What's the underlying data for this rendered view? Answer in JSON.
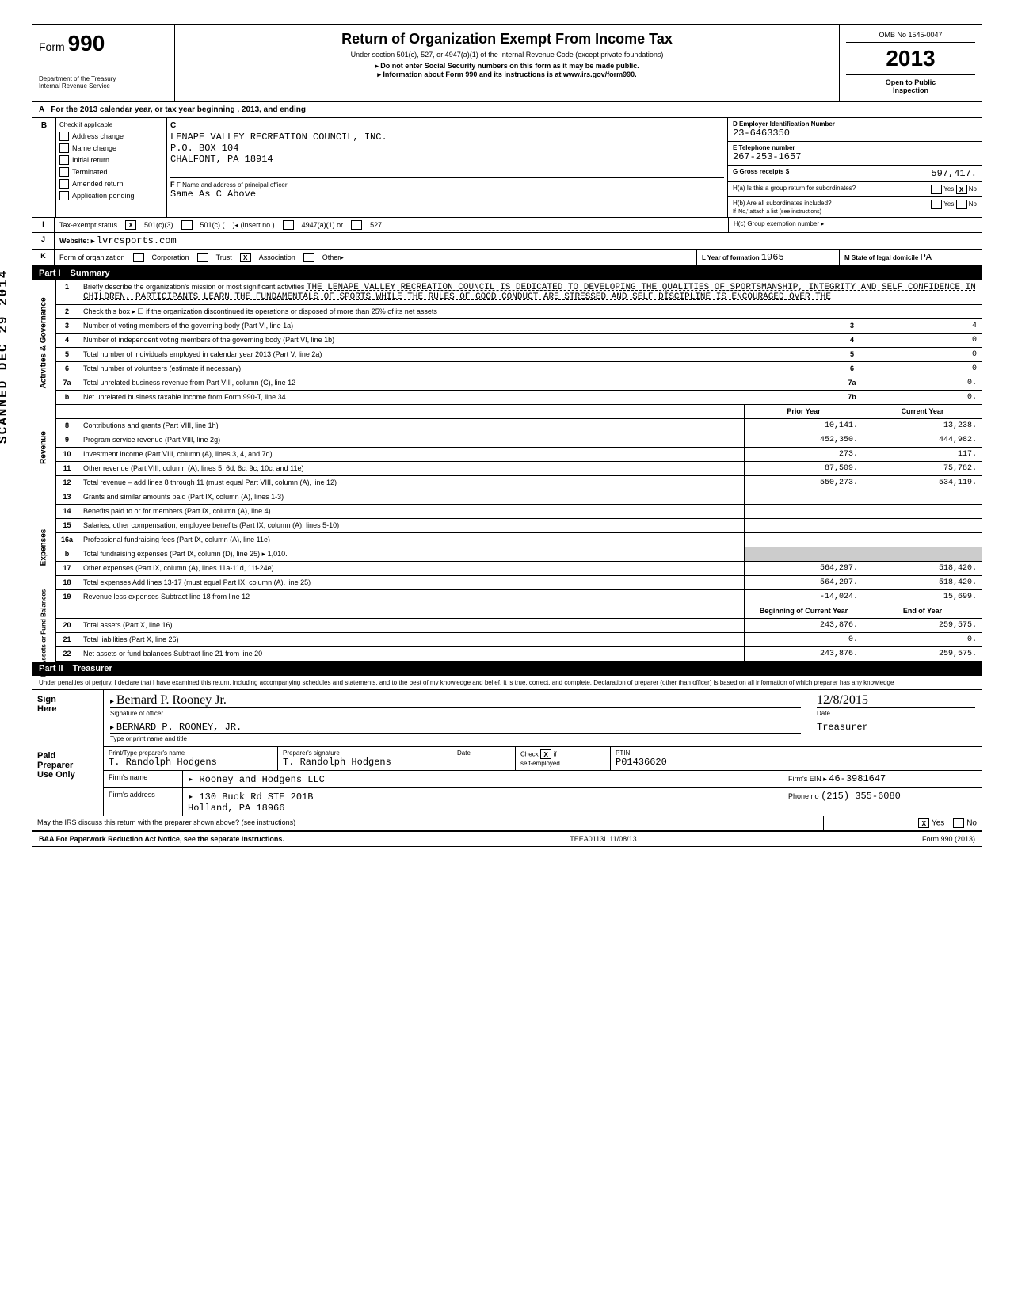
{
  "header": {
    "form_label": "Form",
    "form_number": "990",
    "title": "Return of Organization Exempt From Income Tax",
    "subtitle": "Under section 501(c), 527, or 4947(a)(1) of the Internal Revenue Code (except private foundations)",
    "note1": "▸ Do not enter Social Security numbers on this form as it may be made public.",
    "note2": "▸ Information about Form 990 and its instructions is at www.irs.gov/form990.",
    "dept": "Department of the Treasury\nInternal Revenue Service",
    "omb": "OMB No 1545-0047",
    "year": "2013",
    "open_public": "Open to Public\nInspection"
  },
  "line_a": "For the 2013 calendar year, or tax year beginning                               , 2013, and ending",
  "section_b": {
    "b_label": "B",
    "check_label": "Check if applicable",
    "c_label": "C",
    "checks": [
      "Address change",
      "Name change",
      "Initial return",
      "Terminated",
      "Amended return",
      "Application pending"
    ],
    "org_name": "LENAPE VALLEY RECREATION COUNCIL, INC.",
    "org_addr1": "P.O. BOX 104",
    "org_addr2": "CHALFONT, PA 18914",
    "d_label": "D Employer Identification Number",
    "ein": "23-6463350",
    "e_label": "E Telephone number",
    "phone": "267-253-1657",
    "g_label": "G Gross receipts $",
    "gross_receipts": "597,417.",
    "f_label": "F Name and address of principal officer",
    "officer": "Same As C Above",
    "ha_label": "H(a) Is this a group return for subordinates?",
    "ha_yes": "Yes",
    "ha_no": "No",
    "ha_checked": "X",
    "hb_label": "H(b) Are all subordinates included?",
    "hb_note": "If 'No,' attach a list (see instructions)",
    "hc_label": "H(c) Group exemption number ▸"
  },
  "line_i": {
    "label": "I",
    "desc": "Tax-exempt status",
    "opt1_x": "X",
    "opt1": "501(c)(3)",
    "opt2": "501(c) (",
    "opt2b": ")◂ (insert no.)",
    "opt3": "4947(a)(1) or",
    "opt4": "527"
  },
  "line_j": {
    "label": "J",
    "desc": "Website: ▸",
    "val": "lvrcsports.com"
  },
  "line_k": {
    "label": "K",
    "desc": "Form of organization",
    "opts": [
      "Corporation",
      "Trust",
      "Association",
      "Other▸"
    ],
    "assoc_x": "X",
    "l_label": "L Year of formation",
    "l_val": "1965",
    "m_label": "M State of legal domicile",
    "m_val": "PA"
  },
  "part1": {
    "label": "Part I",
    "title": "Summary",
    "mission_label": "Briefly describe the organization's mission or most significant activities",
    "mission": "THE LENAPE VALLEY RECREATION COUNCIL IS DEDICATED TO DEVELOPING THE QUALITIES OF SPORTSMANSHIP, INTEGRITY AND SELF CONFIDENCE IN CHILDREN.  PARTICIPANTS LEARN THE FUNDAMENTALS OF SPORTS WHILE THE RULES OF GOOD CONDUCT ARE STRESSED AND SELF DISCIPLINE IS ENCOURAGED  OVER THE",
    "line2": "Check this box ▸ ☐ if the organization discontinued its operations or disposed of more than 25% of its net assets",
    "lines_gov": [
      {
        "n": "3",
        "d": "Number of voting members of the governing body (Part VI, line 1a)",
        "box": "3",
        "v": "4"
      },
      {
        "n": "4",
        "d": "Number of independent voting members of the governing body (Part VI, line 1b)",
        "box": "4",
        "v": "0"
      },
      {
        "n": "5",
        "d": "Total number of individuals employed in calendar year 2013 (Part V, line 2a)",
        "box": "5",
        "v": "0"
      },
      {
        "n": "6",
        "d": "Total number of volunteers (estimate if necessary)",
        "box": "6",
        "v": "0"
      },
      {
        "n": "7a",
        "d": "Total unrelated business revenue from Part VIII, column (C), line 12",
        "box": "7a",
        "v": "0."
      },
      {
        "n": "b",
        "d": "Net unrelated business taxable income from Form 990-T, line 34",
        "box": "7b",
        "v": "0."
      }
    ],
    "col_prior": "Prior Year",
    "col_current": "Current Year",
    "lines_rev": [
      {
        "n": "8",
        "d": "Contributions and grants (Part VIII, line 1h)",
        "p": "10,141.",
        "c": "13,238."
      },
      {
        "n": "9",
        "d": "Program service revenue (Part VIII, line 2g)",
        "p": "452,350.",
        "c": "444,982."
      },
      {
        "n": "10",
        "d": "Investment income (Part VIII, column (A), lines 3, 4, and 7d)",
        "p": "273.",
        "c": "117."
      },
      {
        "n": "11",
        "d": "Other revenue (Part VIII, column (A), lines 5, 6d, 8c, 9c, 10c, and 11e)",
        "p": "87,509.",
        "c": "75,782."
      },
      {
        "n": "12",
        "d": "Total revenue – add lines 8 through 11 (must equal Part VIII, column (A), line 12)",
        "p": "550,273.",
        "c": "534,119."
      }
    ],
    "lines_exp": [
      {
        "n": "13",
        "d": "Grants and similar amounts paid (Part IX, column (A), lines 1-3)",
        "p": "",
        "c": ""
      },
      {
        "n": "14",
        "d": "Benefits paid to or for members (Part IX, column (A), line 4)",
        "p": "",
        "c": ""
      },
      {
        "n": "15",
        "d": "Salaries, other compensation, employee benefits (Part IX, column (A), lines 5-10)",
        "p": "",
        "c": ""
      },
      {
        "n": "16a",
        "d": "Professional fundraising fees (Part IX, column (A), line 11e)",
        "p": "",
        "c": ""
      },
      {
        "n": "b",
        "d": "Total fundraising expenses (Part IX, column (D), line 25) ▸               1,010.",
        "p": "",
        "c": "",
        "shaded": true
      },
      {
        "n": "17",
        "d": "Other expenses (Part IX, column (A), lines 11a-11d, 11f-24e)",
        "p": "564,297.",
        "c": "518,420."
      },
      {
        "n": "18",
        "d": "Total expenses Add lines 13-17 (must equal Part IX, column (A), line 25)",
        "p": "564,297.",
        "c": "518,420."
      },
      {
        "n": "19",
        "d": "Revenue less expenses Subtract line 18 from line 12",
        "p": "-14,024.",
        "c": "15,699."
      }
    ],
    "col_begin": "Beginning of Current Year",
    "col_end": "End of Year",
    "lines_net": [
      {
        "n": "20",
        "d": "Total assets (Part X, line 16)",
        "p": "243,876.",
        "c": "259,575."
      },
      {
        "n": "21",
        "d": "Total liabilities (Part X, line 26)",
        "p": "0.",
        "c": "0."
      },
      {
        "n": "22",
        "d": "Net assets or fund balances Subtract line 21 from line 20",
        "p": "243,876.",
        "c": "259,575."
      }
    ],
    "side_gov": "Activities & Governance",
    "side_rev": "Revenue",
    "side_exp": "Expenses",
    "side_net": "Net Assets or\nFund Balances"
  },
  "stamp": "SCANNED DEC 29 2014",
  "part2": {
    "label": "Part II",
    "title": "Treasurer",
    "perjury": "Under penalties of perjury, I declare that I have examined this return, including accompanying schedules and statements, and to the best of my knowledge and belief, it is true, correct, and complete. Declaration of preparer (other than officer) is based on all information of which preparer has any knowledge",
    "sign_here": "Sign\nHere",
    "sig_officer_label": "Signature of officer",
    "sig_officer": "Bernard P. Rooney Jr.",
    "date_label": "Date",
    "date": "12/8/2015",
    "name_title": "BERNARD P. ROONEY, JR.",
    "name_title_label": "Type or print name and title",
    "paid": "Paid\nPreparer\nUse Only",
    "prep_name_label": "Print/Type preparer's name",
    "prep_name": "T. Randolph Hodgens",
    "prep_sig_label": "Preparer's signature",
    "prep_sig": "T. Randolph Hodgens",
    "prep_date_label": "Date",
    "check_label": "Check",
    "check_x": "X",
    "check_if": "if\nself-employed",
    "ptin_label": "PTIN",
    "ptin": "P01436620",
    "firm_name_label": "Firm's name",
    "firm_name": "▸ Rooney and Hodgens LLC",
    "firm_addr_label": "Firm's address",
    "firm_addr": "▸ 130 Buck Rd STE 201B\nHolland, PA 18966",
    "firm_ein_label": "Firm's EIN ▸",
    "firm_ein": "46-3981647",
    "phone_label": "Phone no",
    "phone": "(215) 355-6080",
    "discuss": "May the IRS discuss this return with the preparer shown above? (see instructions)",
    "discuss_yes": "Yes",
    "discuss_no": "No",
    "discuss_x": "X"
  },
  "footer": {
    "left": "BAA For Paperwork Reduction Act Notice, see the separate instructions.",
    "mid": "TEEA0113L 11/08/13",
    "right": "Form 990 (2013)"
  }
}
